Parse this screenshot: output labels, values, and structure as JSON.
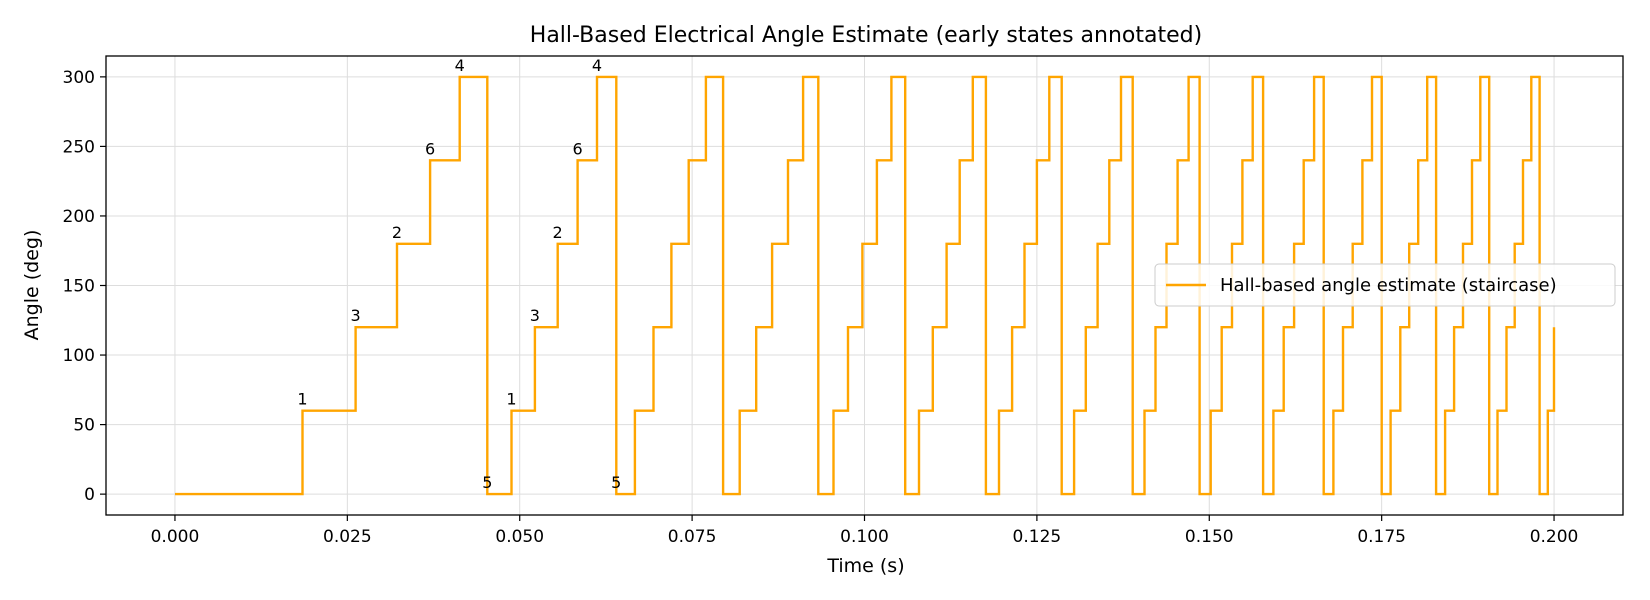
{
  "chart_data": {
    "type": "line",
    "title": "Hall-Based Electrical Angle Estimate (early states annotated)",
    "xlabel": "Time (s)",
    "ylabel": "Angle (deg)",
    "xlim": [
      -0.01,
      0.21
    ],
    "ylim": [
      -15,
      315
    ],
    "xticks": [
      0.0,
      0.025,
      0.05,
      0.075,
      0.1,
      0.125,
      0.15,
      0.175,
      0.2
    ],
    "xtick_labels": [
      "0.000",
      "0.025",
      "0.050",
      "0.075",
      "0.100",
      "0.125",
      "0.150",
      "0.175",
      "0.200"
    ],
    "yticks": [
      0,
      50,
      100,
      150,
      200,
      250,
      300
    ],
    "ytick_labels": [
      "0",
      "50",
      "100",
      "150",
      "200",
      "250",
      "300"
    ],
    "grid": true,
    "legend_position": "center-right",
    "colors": {
      "series": "#FFA500",
      "grid": "#dddddd",
      "axes": "#000000"
    },
    "series": [
      {
        "name": "Hall-based angle estimate (staircase)",
        "step": "post",
        "x": [
          0.0,
          0.0185,
          0.0262,
          0.0322,
          0.037,
          0.0413,
          0.0453,
          0.0488,
          0.0522,
          0.0555,
          0.0584,
          0.0612,
          0.064,
          0.0667,
          0.0694,
          0.072,
          0.0745,
          0.077,
          0.0795,
          0.0819,
          0.0843,
          0.0866,
          0.0889,
          0.0911,
          0.0933,
          0.0955,
          0.0976,
          0.0997,
          0.1018,
          0.1039,
          0.1059,
          0.1079,
          0.1099,
          0.1119,
          0.1138,
          0.1157,
          0.1176,
          0.1195,
          0.1214,
          0.1232,
          0.125,
          0.1268,
          0.1286,
          0.1304,
          0.1321,
          0.1338,
          0.1355,
          0.1372,
          0.1389,
          0.1406,
          0.1422,
          0.1438,
          0.1454,
          0.147,
          0.1486,
          0.1502,
          0.1518,
          0.1533,
          0.1548,
          0.1563,
          0.1578,
          0.1593,
          0.1608,
          0.1623,
          0.1637,
          0.1652,
          0.1666,
          0.168,
          0.1694,
          0.1708,
          0.1722,
          0.1736,
          0.175,
          0.1763,
          0.1777,
          0.179,
          0.1803,
          0.1816,
          0.1829,
          0.1842,
          0.1855,
          0.1868,
          0.1881,
          0.1893,
          0.1906,
          0.1918,
          0.1931,
          0.1943,
          0.1955,
          0.1967,
          0.1979,
          0.1991,
          0.2
        ],
        "y": [
          0,
          60,
          120,
          180,
          240,
          300,
          0,
          60,
          120,
          180,
          240,
          300,
          0,
          60,
          120,
          180,
          240,
          300,
          0,
          60,
          120,
          180,
          240,
          300,
          0,
          60,
          120,
          180,
          240,
          300,
          0,
          60,
          120,
          180,
          240,
          300,
          0,
          60,
          120,
          180,
          240,
          300,
          0,
          60,
          120,
          180,
          240,
          300,
          0,
          60,
          120,
          180,
          240,
          300,
          0,
          60,
          120,
          180,
          240,
          300,
          0,
          60,
          120,
          180,
          240,
          300,
          0,
          60,
          120,
          180,
          240,
          300,
          0,
          60,
          120,
          180,
          240,
          300,
          0,
          60,
          120,
          180,
          240,
          300,
          0,
          60,
          120,
          180,
          240,
          300,
          0,
          60,
          120
        ]
      }
    ],
    "annotations": [
      {
        "text": "1",
        "x": 0.0185,
        "y": 60
      },
      {
        "text": "3",
        "x": 0.0262,
        "y": 120
      },
      {
        "text": "2",
        "x": 0.0322,
        "y": 180
      },
      {
        "text": "6",
        "x": 0.037,
        "y": 240
      },
      {
        "text": "4",
        "x": 0.0413,
        "y": 300
      },
      {
        "text": "5",
        "x": 0.0453,
        "y": 0
      },
      {
        "text": "1",
        "x": 0.0488,
        "y": 60
      },
      {
        "text": "3",
        "x": 0.0522,
        "y": 120
      },
      {
        "text": "2",
        "x": 0.0555,
        "y": 180
      },
      {
        "text": "6",
        "x": 0.0584,
        "y": 240
      },
      {
        "text": "4",
        "x": 0.0612,
        "y": 300
      },
      {
        "text": "5",
        "x": 0.064,
        "y": 0
      }
    ]
  }
}
